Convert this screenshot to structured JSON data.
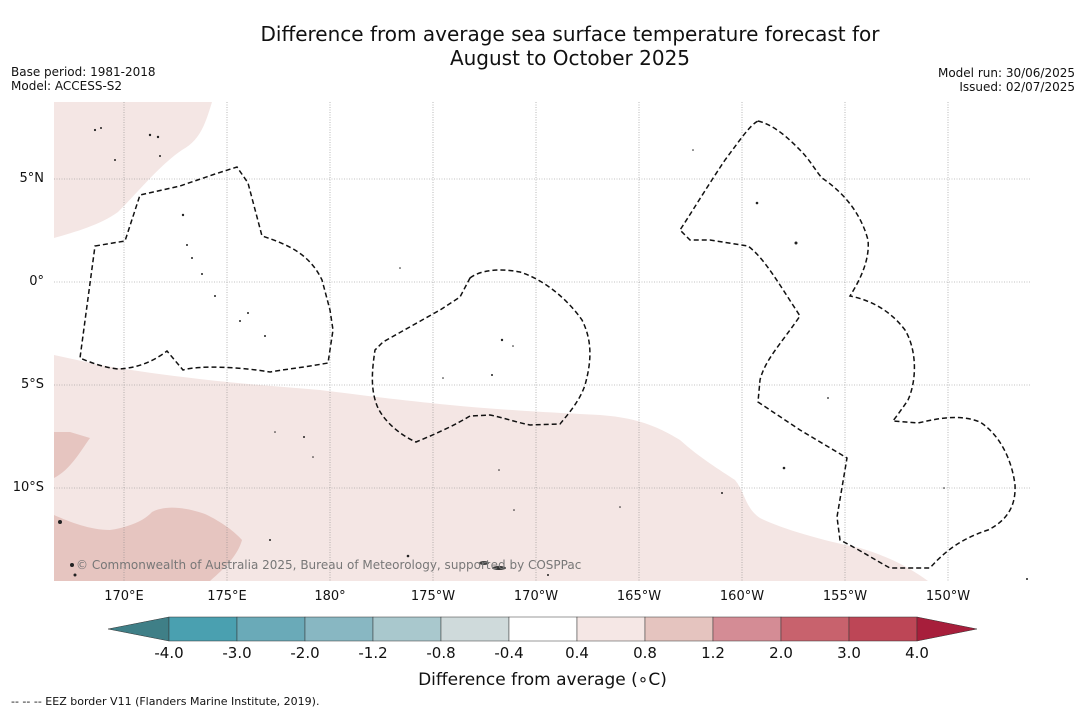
{
  "title": {
    "line1": "Difference from average sea surface temperature forecast for",
    "line2": "August to October 2025"
  },
  "meta_left": {
    "base_period": "Base period: 1981-2018",
    "model": "Model: ACCESS-S2"
  },
  "meta_right": {
    "model_run": "Model run: 30/06/2025",
    "issued": "Issued: 02/07/2025"
  },
  "lat_labels": [
    "5°N",
    "0°",
    "5°S",
    "10°S"
  ],
  "lon_labels": [
    "170°E",
    "175°E",
    "180°",
    "175°W",
    "170°W",
    "165°W",
    "160°W",
    "155°W",
    "150°W"
  ],
  "copyright": "© Commonwealth of Australia 2025, Bureau of Meteorology, supported by COSPPac",
  "colorbar": {
    "title": "Difference from average (∘C)",
    "ticks": [
      "-4.0",
      "-3.0",
      "-2.0",
      "-1.2",
      "-0.8",
      "-0.4",
      "0.4",
      "0.8",
      "1.2",
      "2.0",
      "3.0",
      "4.0"
    ],
    "colors": [
      "#3f7f87",
      "#4aa0b0",
      "#6aaab8",
      "#88b7c2",
      "#a9c8cd",
      "#cfdadb",
      "#ffffff",
      "#f5e7e5",
      "#e5c4bf",
      "#d48c95",
      "#c8626d",
      "#bd4656",
      "#a71e3b"
    ]
  },
  "map_colors": {
    "anomaly_0_4_to_0_8": "#f4e6e4",
    "anomaly_0_8_to_1_2": "#e6c5c0"
  },
  "footnote": "--  --  -- EEZ border V11 (Flanders Marine Institute, 2019)."
}
